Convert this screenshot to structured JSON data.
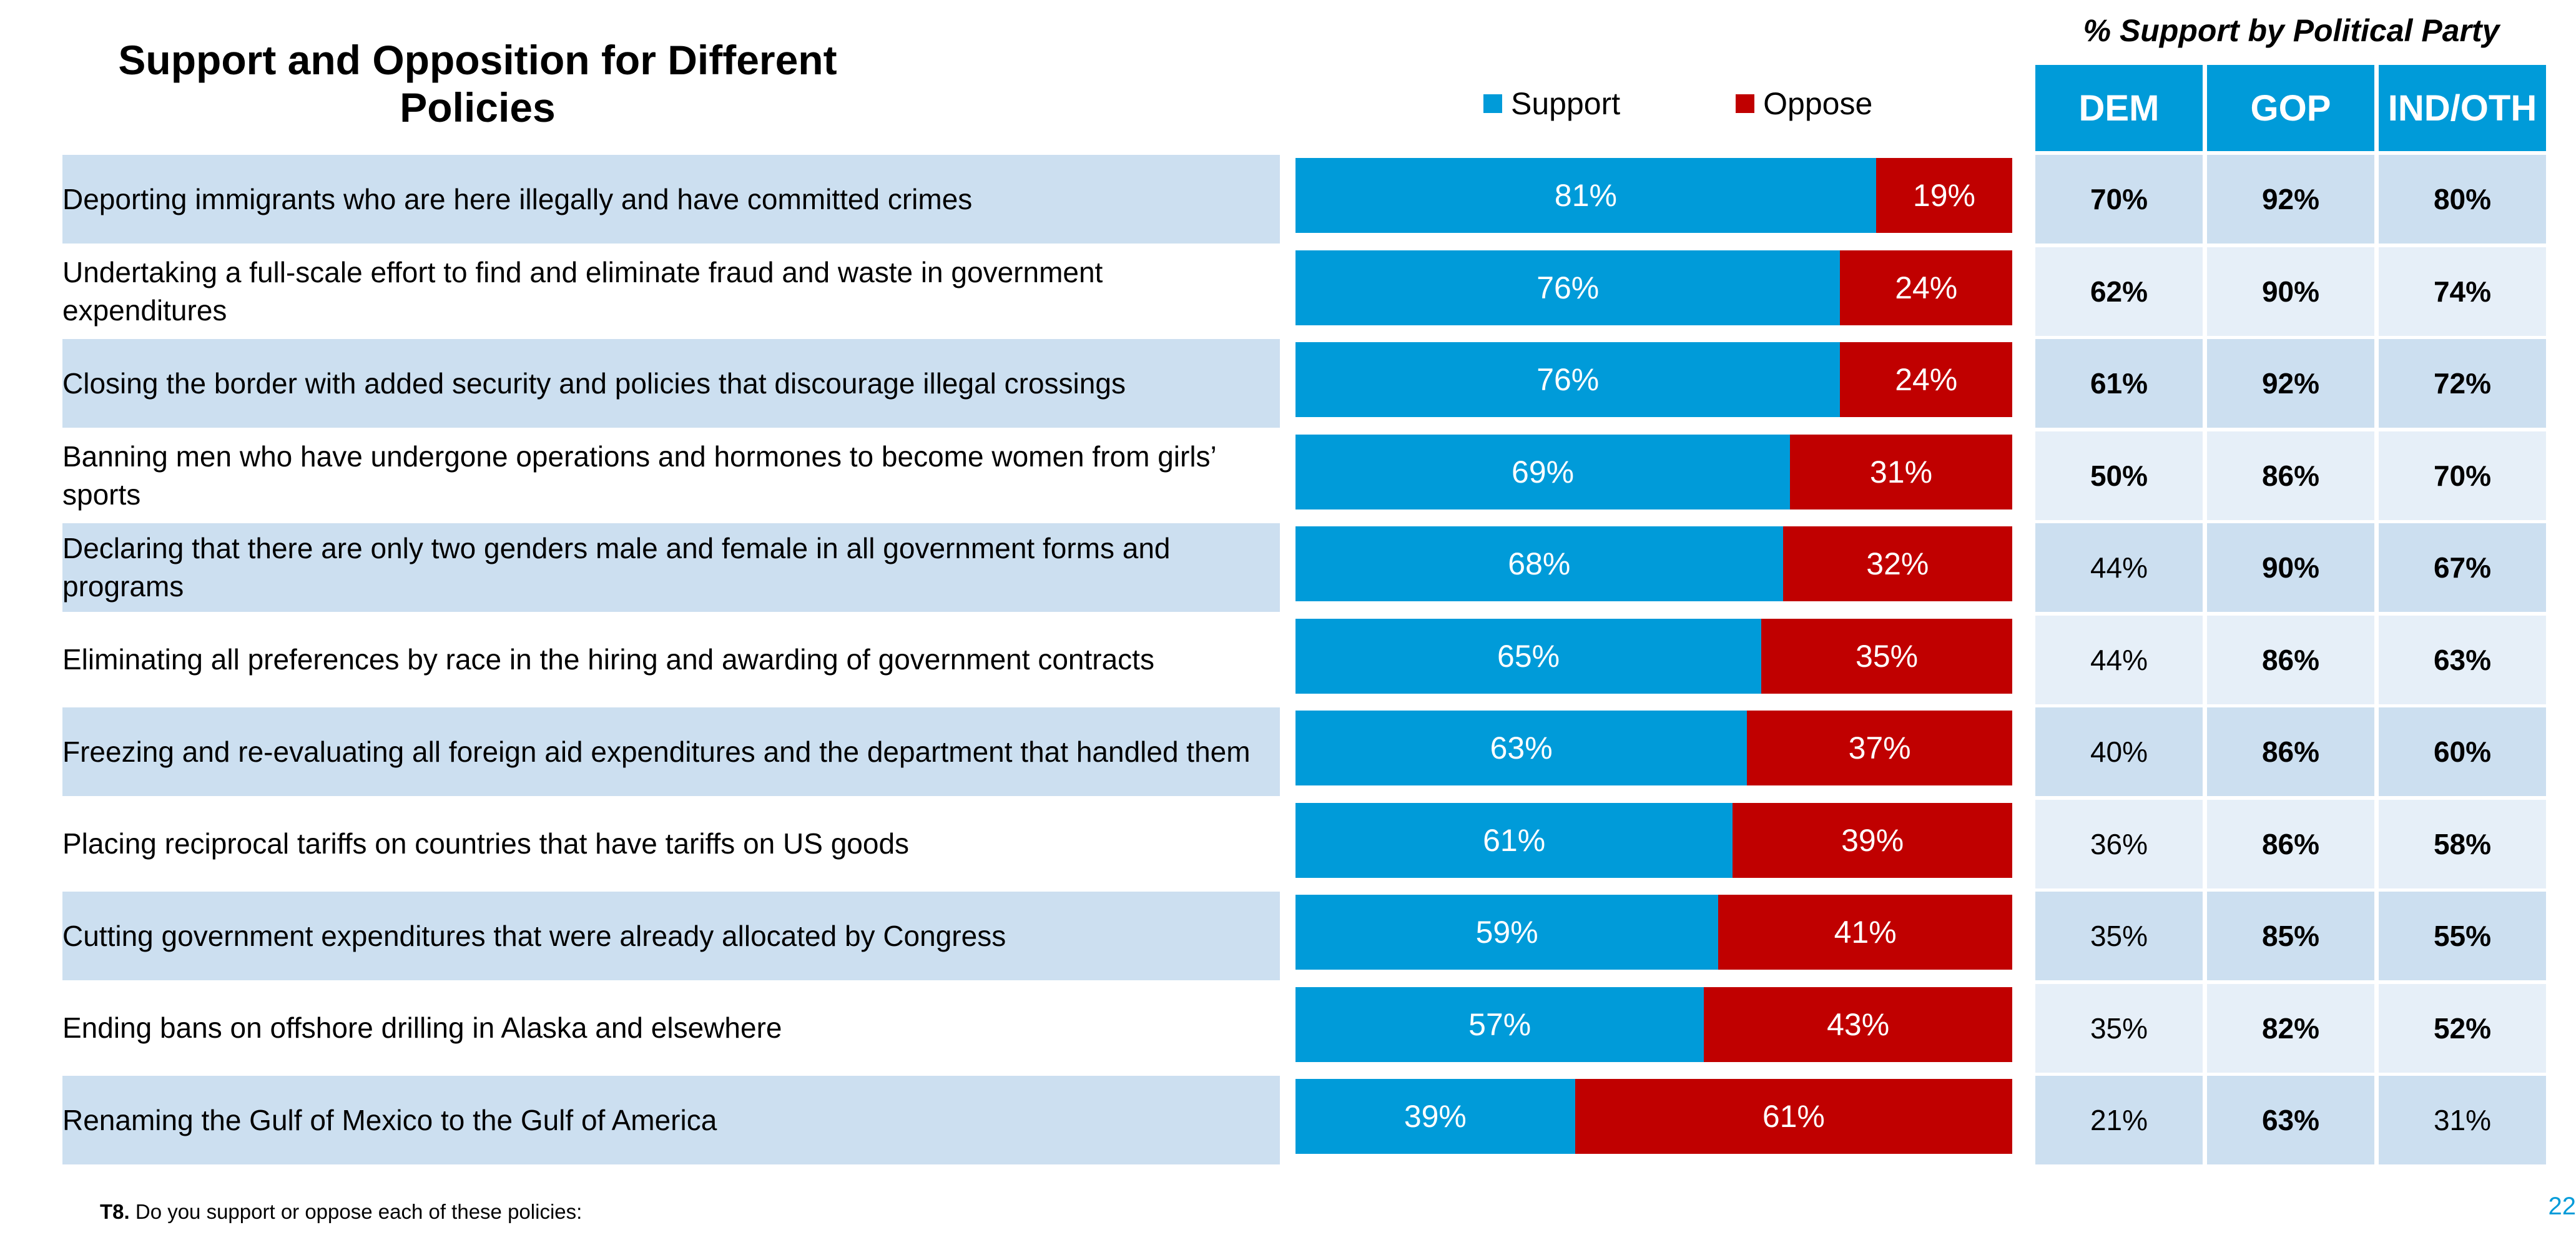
{
  "title": "Support and Opposition for Different Policies",
  "party_header": "% Support by Political Party",
  "legend": {
    "support_label": "Support",
    "oppose_label": "Oppose"
  },
  "colors": {
    "support": "#009bd9",
    "oppose": "#c00000",
    "header_fill": "#009bd9",
    "row_band": "#ccdff0",
    "cell_dark": "#ccdff0",
    "cell_light": "#e6eff8"
  },
  "footnote": {
    "tag": "T8.",
    "text": " Do you support or oppose each of these policies:"
  },
  "page_number": "22",
  "chart_data": {
    "type": "bar",
    "orientation": "horizontal",
    "stacked": true,
    "title": "Support and Opposition for Different Policies",
    "categories": [
      "Deporting immigrants who are here illegally and have committed crimes",
      "Undertaking a full-scale effort to find and eliminate fraud and waste in government expenditures",
      "Closing the border with added security and policies that discourage illegal crossings",
      "Banning men who have undergone operations and hormones to become women from girls’ sports",
      "Declaring that there are only two genders male and female in all government forms and programs",
      "Eliminating all preferences by race in the hiring and awarding of government contracts",
      "Freezing and re-evaluating all foreign aid expenditures and the department that handled them",
      "Placing reciprocal tariffs on countries that have tariffs on US goods",
      "Cutting government expenditures that were already allocated by Congress",
      "Ending bans on offshore drilling in Alaska and elsewhere",
      "Renaming the Gulf of Mexico to the Gulf of America"
    ],
    "series": [
      {
        "name": "Support",
        "values": [
          81,
          76,
          76,
          69,
          68,
          65,
          63,
          61,
          59,
          57,
          39
        ],
        "labels": [
          "81%",
          "76%",
          "76%",
          "69%",
          "68%",
          "65%",
          "63%",
          "61%",
          "59%",
          "57%",
          "39%"
        ]
      },
      {
        "name": "Oppose",
        "values": [
          19,
          24,
          24,
          31,
          32,
          35,
          37,
          39,
          41,
          43,
          61
        ],
        "labels": [
          "19%",
          "24%",
          "24%",
          "31%",
          "32%",
          "35%",
          "37%",
          "39%",
          "41%",
          "43%",
          "61%"
        ]
      }
    ],
    "xlim": [
      0,
      100
    ],
    "legend_position": "top",
    "party_table": {
      "columns": [
        "DEM",
        "GOP",
        "IND/OTH"
      ],
      "rows": [
        [
          "70%",
          "92%",
          "80%"
        ],
        [
          "62%",
          "90%",
          "74%"
        ],
        [
          "61%",
          "92%",
          "72%"
        ],
        [
          "50%",
          "86%",
          "70%"
        ],
        [
          "44%",
          "90%",
          "67%"
        ],
        [
          "44%",
          "86%",
          "63%"
        ],
        [
          "40%",
          "86%",
          "60%"
        ],
        [
          "36%",
          "86%",
          "58%"
        ],
        [
          "35%",
          "85%",
          "55%"
        ],
        [
          "35%",
          "82%",
          "52%"
        ],
        [
          "21%",
          "63%",
          "31%"
        ]
      ],
      "bold": [
        [
          true,
          true,
          true
        ],
        [
          true,
          true,
          true
        ],
        [
          true,
          true,
          true
        ],
        [
          true,
          true,
          true
        ],
        [
          false,
          true,
          true
        ],
        [
          false,
          true,
          true
        ],
        [
          false,
          true,
          true
        ],
        [
          false,
          true,
          true
        ],
        [
          false,
          true,
          true
        ],
        [
          false,
          true,
          true
        ],
        [
          false,
          true,
          false
        ]
      ]
    }
  }
}
